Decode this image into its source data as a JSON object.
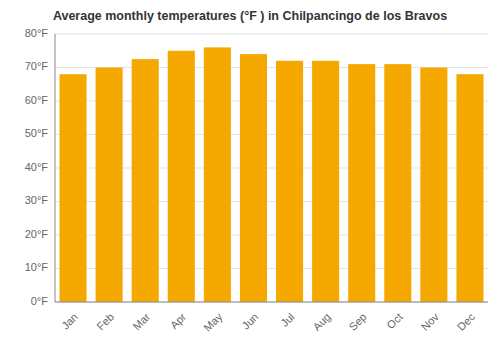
{
  "chart_data": {
    "type": "bar",
    "title": "Average monthly temperatures (°F ) in Chilpancingo de los Bravos",
    "categories": [
      "Jan",
      "Feb",
      "Mar",
      "Apr",
      "May",
      "Jun",
      "Jul",
      "Aug",
      "Sep",
      "Oct",
      "Nov",
      "Dec"
    ],
    "values": [
      68,
      70,
      72.5,
      75,
      76,
      74,
      72,
      72,
      71,
      71,
      70,
      68
    ],
    "color": "#F5A800",
    "ylim": [
      0,
      80
    ],
    "yticks": [
      {
        "value": 0,
        "label": "0°F"
      },
      {
        "value": 10,
        "label": "10°F"
      },
      {
        "value": 20,
        "label": "20°F"
      },
      {
        "value": 30,
        "label": "30°F"
      },
      {
        "value": 40,
        "label": "40°F"
      },
      {
        "value": 50,
        "label": "50°F"
      },
      {
        "value": 60,
        "label": "60°F"
      },
      {
        "value": 70,
        "label": "70°F"
      },
      {
        "value": 80,
        "label": "80°F"
      }
    ],
    "grid": true
  }
}
